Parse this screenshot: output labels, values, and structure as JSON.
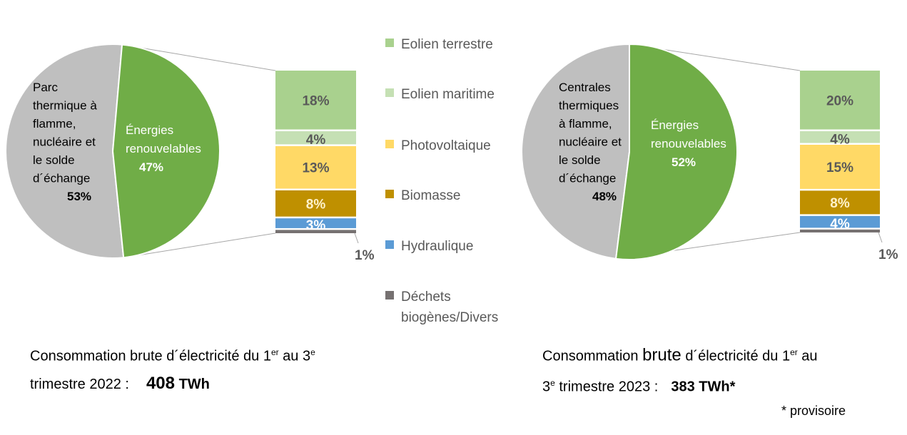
{
  "chart_data": [
    {
      "type": "pie-of-bar",
      "pie": [
        {
          "name": "Parc thermique à flamme, nucléaire et le solde d´échange",
          "lines": [
            "Parc",
            "thermique à",
            "flamme,",
            "nucléaire et",
            "le solde",
            "d´échange"
          ],
          "value": 53,
          "label": "53%",
          "color": "#bfbfbf"
        },
        {
          "name": "Énergies renouvelables",
          "lines": [
            "Énergies",
            "renouvelables"
          ],
          "value": 47,
          "label": "47%",
          "color": "#70ad47"
        }
      ],
      "bar": [
        {
          "name": "Eolien terrestre",
          "value": 18,
          "label": "18%"
        },
        {
          "name": "Eolien maritime",
          "value": 4,
          "label": "4%"
        },
        {
          "name": "Photovoltaique",
          "value": 13,
          "label": "13%"
        },
        {
          "name": "Biomasse",
          "value": 8,
          "label": "8%"
        },
        {
          "name": "Hydraulique",
          "value": 3,
          "label": "3%"
        },
        {
          "name": "Déchets biogènes/Divers",
          "value": 1,
          "label": "1%"
        }
      ]
    },
    {
      "type": "pie-of-bar",
      "pie": [
        {
          "name": "Centrales thermiques à flamme, nucléaire et le solde d´échange",
          "lines": [
            "Centrales",
            "thermiques",
            "à flamme,",
            "nucléaire et",
            "le solde",
            "d´échange"
          ],
          "value": 48,
          "label": "48%",
          "color": "#bfbfbf"
        },
        {
          "name": "Énergies renouvelables",
          "lines": [
            "Énergies",
            "renouvelables"
          ],
          "value": 52,
          "label": "52%",
          "color": "#70ad47"
        }
      ],
      "bar": [
        {
          "name": "Eolien terrestre",
          "value": 20,
          "label": "20%"
        },
        {
          "name": "Eolien maritime",
          "value": 4,
          "label": "4%"
        },
        {
          "name": "Photovoltaique",
          "value": 15,
          "label": "15%"
        },
        {
          "name": "Biomasse",
          "value": 8,
          "label": "8%"
        },
        {
          "name": "Hydraulique",
          "value": 4,
          "label": "4%"
        },
        {
          "name": "Déchets biogènes/Divers",
          "value": 1,
          "label": "1%"
        }
      ]
    }
  ],
  "legend": [
    {
      "label": "Eolien terrestre",
      "color": "#a9d18e"
    },
    {
      "label": "Eolien maritime",
      "color": "#c5e0b4"
    },
    {
      "label": "Photovoltaique",
      "color": "#ffd966"
    },
    {
      "label": "Biomasse",
      "color": "#bf9000"
    },
    {
      "label": "Hydraulique",
      "color": "#5b9bd5"
    },
    {
      "label": "Déchets biogènes/Divers",
      "color": "#767171"
    }
  ],
  "captions": {
    "left": {
      "text1": "Consommation brute d´électricité du 1",
      "sup1": "er",
      "text2": " au 3",
      "sup2": "e",
      "line2": "trimestre 2022 :",
      "value": "408",
      "unit": "TWh"
    },
    "right": {
      "text1a": "Consommation ",
      "brute": "brute",
      "text1b": " d´électricité du 1",
      "sup1": "er",
      "text1c": " au",
      "line2a": "3",
      "sup2": "e",
      "line2b": " trimestre 2023 :",
      "value": "383 TWh*"
    },
    "note": "* provisoire"
  }
}
